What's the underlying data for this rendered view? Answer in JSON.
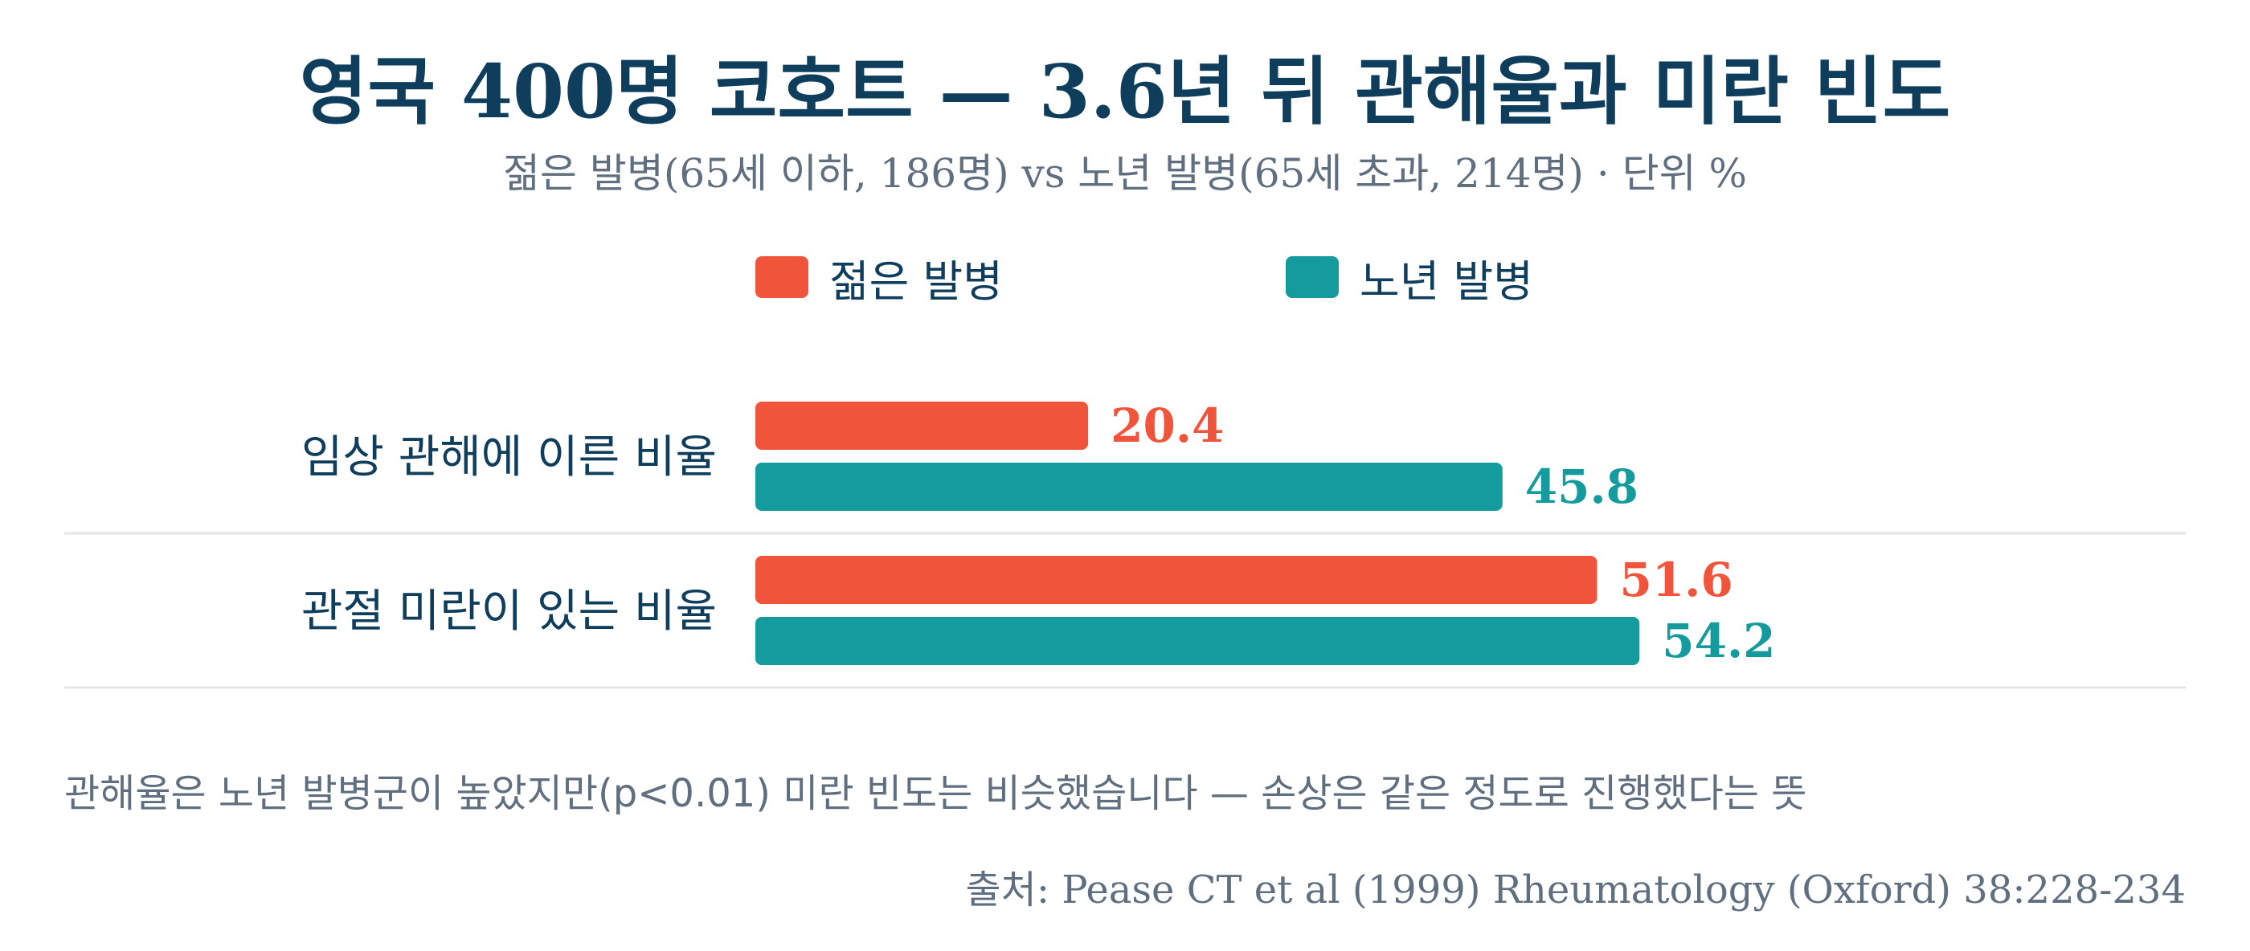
{
  "chart_data": {
    "type": "bar",
    "orientation": "horizontal",
    "title": "영국 400명 코호트 — 3.6년 뒤 관해율과 미란 빈도",
    "subtitle": "젊은 발병(65세 이하, 186명) vs 노년 발병(65세 초과, 214명) · 단위 %",
    "categories": [
      "임상 관해에 이른 비율",
      "관절 미란이 있는 비율"
    ],
    "series": [
      {
        "name": "젊은 발병",
        "values": [
          20.4,
          51.6
        ],
        "color": "#f0553c"
      },
      {
        "name": "노년 발병",
        "values": [
          45.8,
          54.2
        ],
        "color": "#149b9e"
      }
    ],
    "xlim": [
      0,
      100
    ],
    "grid": false,
    "legend_position": "top-center",
    "note": "관해율은 노년 발병군이 높았지만(p<0.01) 미란 빈도는 비슷했습니다 — 손상은 같은 정도로 진행했다는 뜻",
    "source": "출처: Pease CT et al (1999) Rheumatology (Oxford) 38:228-234",
    "divider_color": "#e3e6e8"
  }
}
